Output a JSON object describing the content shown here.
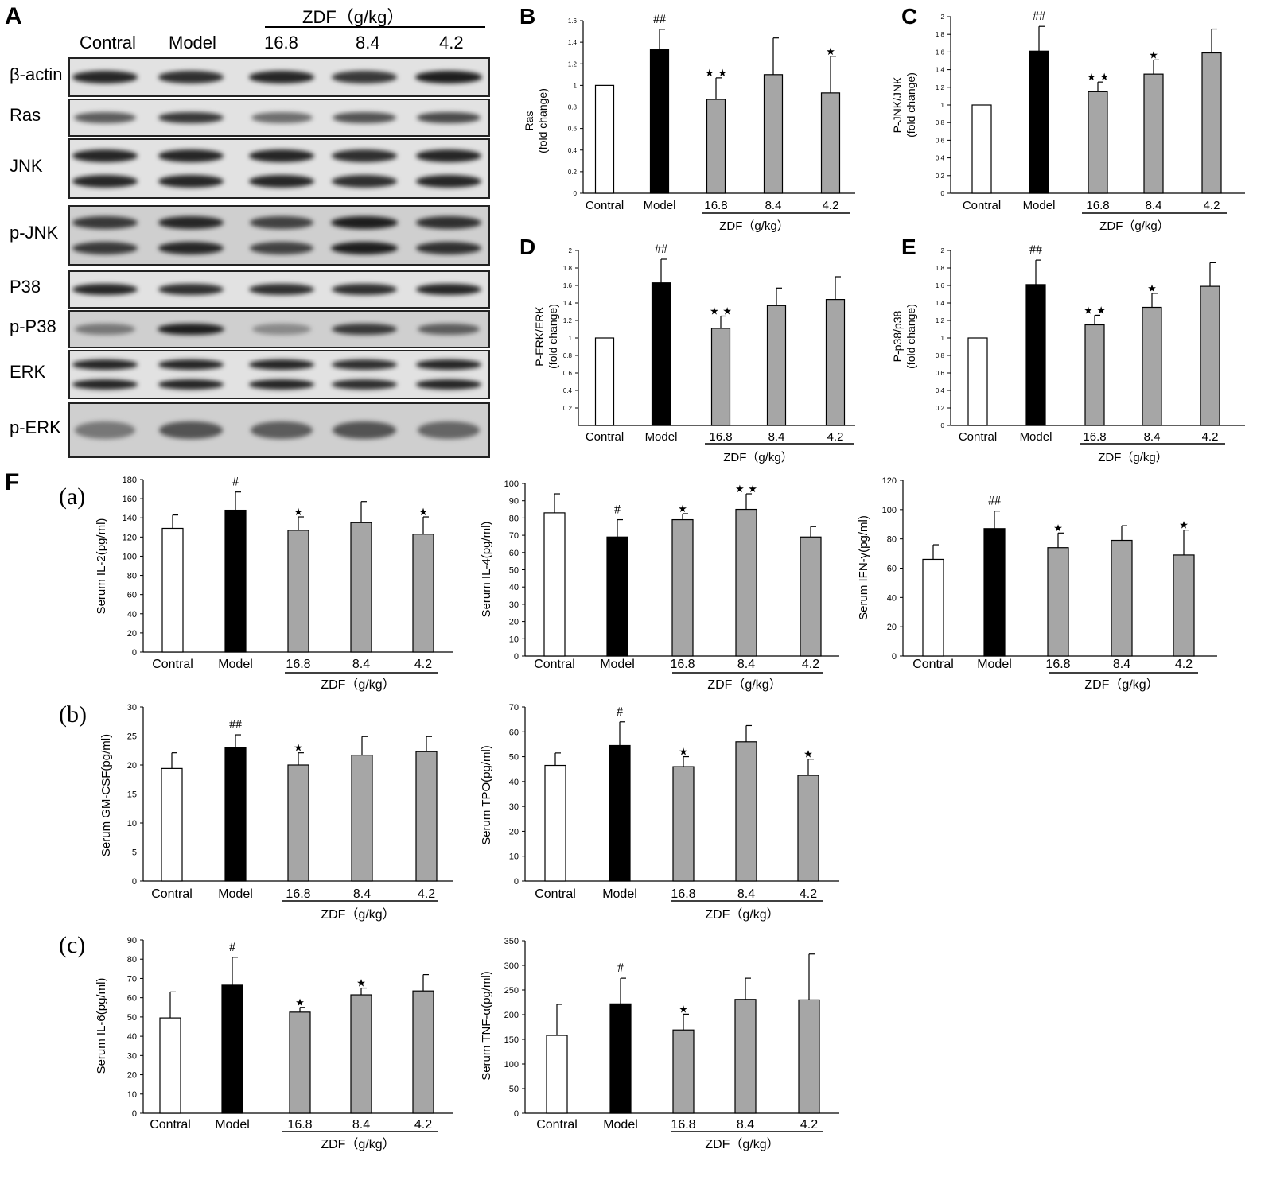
{
  "groups": [
    "Contral",
    "Model",
    "16.8",
    "8.4",
    "4.2"
  ],
  "zdf_label": "ZDF（g/kg）",
  "blot": {
    "letter": "A",
    "header": [
      "Contral",
      "Model",
      "16.8",
      "8.4",
      "4.2"
    ],
    "zdf_label": "ZDF（g/kg）",
    "rows": [
      {
        "label": "β-actin",
        "bands": [
          0.9,
          0.85,
          0.9,
          0.8,
          0.95
        ],
        "nbands": 1
      },
      {
        "label": "Ras",
        "bands": [
          0.6,
          0.8,
          0.5,
          0.65,
          0.7
        ],
        "nbands": 1
      },
      {
        "label": "JNK",
        "bands": [
          0.9,
          0.9,
          0.9,
          0.85,
          0.9
        ],
        "nbands": 2
      },
      {
        "label": "p-JNK",
        "bands": [
          0.8,
          0.9,
          0.75,
          0.95,
          0.85
        ],
        "nbands": 2
      },
      {
        "label": "P38",
        "bands": [
          0.9,
          0.85,
          0.85,
          0.85,
          0.9
        ],
        "nbands": 1
      },
      {
        "label": "p-P38",
        "bands": [
          0.45,
          0.95,
          0.35,
          0.8,
          0.6
        ],
        "nbands": 1
      },
      {
        "label": "ERK",
        "bands": [
          0.9,
          0.9,
          0.9,
          0.85,
          0.9
        ],
        "nbands": 2
      },
      {
        "label": "p-ERK",
        "bands": [
          0.45,
          0.65,
          0.6,
          0.65,
          0.55
        ],
        "nbands": 1
      }
    ]
  },
  "panel_F_letter": "F",
  "sub_labels": [
    "(a)",
    "(b)",
    "(c)"
  ],
  "chart_data": [
    {
      "id": "B",
      "type": "bar",
      "title": "",
      "letter": "B",
      "xlabel": "",
      "ylabel": [
        "Ras",
        "(fold change)"
      ],
      "ylim": [
        0,
        1.6
      ],
      "yticks": [
        0,
        0.2,
        0.4,
        0.6,
        0.8,
        1,
        1.2,
        1.4,
        1.6
      ],
      "categories": [
        "Contral",
        "Model",
        "16.8",
        "8.4",
        "4.2"
      ],
      "values": [
        1.0,
        1.33,
        0.87,
        1.1,
        0.93
      ],
      "errors": [
        0,
        0.19,
        0.2,
        0.34,
        0.34
      ],
      "annotations": [
        "",
        "##",
        "**",
        "",
        "*"
      ],
      "zdf_label": "ZDF（g/kg）"
    },
    {
      "id": "C",
      "type": "bar",
      "title": "",
      "letter": "C",
      "xlabel": "",
      "ylabel": [
        "P-JNK/JNK",
        "(fold change)"
      ],
      "ylim": [
        0,
        2
      ],
      "yticks": [
        0,
        0.2,
        0.4,
        0.6,
        0.8,
        1,
        1.2,
        1.4,
        1.6,
        1.8,
        2
      ],
      "categories": [
        "Contral",
        "Model",
        "16.8",
        "8.4",
        "4.2"
      ],
      "values": [
        1.0,
        1.61,
        1.15,
        1.35,
        1.59
      ],
      "errors": [
        0,
        0.28,
        0.11,
        0.16,
        0.27
      ],
      "annotations": [
        "",
        "##",
        "**",
        "*",
        ""
      ],
      "zdf_label": "ZDF（g/kg）"
    },
    {
      "id": "D",
      "type": "bar",
      "title": "",
      "letter": "D",
      "xlabel": "",
      "ylabel": [
        "P-ERK/ERK",
        "(fold change)"
      ],
      "ylim": [
        0,
        2
      ],
      "yticks": [
        0.2,
        0.4,
        0.6,
        0.8,
        1,
        1.2,
        1.4,
        1.6,
        1.8,
        2
      ],
      "categories": [
        "Contral",
        "Model",
        "16.8",
        "8.4",
        "4.2"
      ],
      "values": [
        1.0,
        1.63,
        1.11,
        1.37,
        1.44
      ],
      "errors": [
        0,
        0.27,
        0.14,
        0.2,
        0.26
      ],
      "annotations": [
        "",
        "##",
        "**",
        "",
        ""
      ],
      "zdf_label": "ZDF（g/kg）"
    },
    {
      "id": "E",
      "type": "bar",
      "title": "",
      "letter": "E",
      "xlabel": "",
      "ylabel": [
        "P-p38/p38",
        "(fold change)"
      ],
      "ylim": [
        0,
        2
      ],
      "yticks": [
        0,
        0.2,
        0.4,
        0.6,
        0.8,
        1,
        1.2,
        1.4,
        1.6,
        1.8,
        2
      ],
      "categories": [
        "Contral",
        "Model",
        "16.8",
        "8.4",
        "4.2"
      ],
      "values": [
        1.0,
        1.61,
        1.15,
        1.35,
        1.59
      ],
      "errors": [
        0,
        0.28,
        0.11,
        0.16,
        0.27
      ],
      "annotations": [
        "",
        "##",
        "**",
        "*",
        ""
      ],
      "zdf_label": "ZDF（g/kg）"
    },
    {
      "id": "IL2",
      "type": "bar",
      "title": "",
      "xlabel": "",
      "ylabel": [
        "Serum IL-2(pg/ml)"
      ],
      "ylim": [
        0,
        180
      ],
      "yticks": [
        0,
        20,
        40,
        60,
        80,
        100,
        120,
        140,
        160,
        180
      ],
      "categories": [
        "Contral",
        "Model",
        "16.8",
        "8.4",
        "4.2"
      ],
      "values": [
        129,
        148,
        127,
        135,
        123
      ],
      "errors": [
        14,
        19,
        14,
        22,
        18
      ],
      "annotations": [
        "",
        "#",
        "*",
        "",
        "*"
      ],
      "zdf_label": "ZDF（g/kg）"
    },
    {
      "id": "IL4",
      "type": "bar",
      "title": "",
      "xlabel": "",
      "ylabel": [
        "Serum IL-4(pg/ml)"
      ],
      "ylim": [
        0,
        100
      ],
      "yticks": [
        0,
        10,
        20,
        30,
        40,
        50,
        60,
        70,
        80,
        90,
        100
      ],
      "categories": [
        "Contral",
        "Model",
        "16.8",
        "8.4",
        "4.2"
      ],
      "values": [
        83,
        69,
        79,
        85,
        69
      ],
      "errors": [
        11,
        10,
        3.5,
        9,
        6
      ],
      "annotations": [
        "",
        "#",
        "*",
        "**",
        ""
      ],
      "zdf_label": "ZDF（g/kg）"
    },
    {
      "id": "IFN",
      "type": "bar",
      "title": "",
      "xlabel": "",
      "ylabel": [
        "Serum IFN-γ(pg/ml)"
      ],
      "ylim": [
        0,
        120
      ],
      "yticks": [
        0,
        20,
        40,
        60,
        80,
        100,
        120
      ],
      "categories": [
        "Contral",
        "Model",
        "16.8",
        "8.4",
        "4.2"
      ],
      "values": [
        66,
        87,
        74,
        79,
        69
      ],
      "errors": [
        10,
        12,
        10,
        10,
        17
      ],
      "annotations": [
        "",
        "##",
        "*",
        "",
        "*"
      ],
      "zdf_label": "ZDF（g/kg）"
    },
    {
      "id": "GMCSF",
      "type": "bar",
      "title": "",
      "xlabel": "",
      "ylabel": [
        "Serum GM-CSF(pg/ml)"
      ],
      "ylim": [
        0,
        30
      ],
      "yticks": [
        0,
        5,
        10,
        15,
        20,
        25,
        30
      ],
      "categories": [
        "Contral",
        "Model",
        "16.8",
        "8.4",
        "4.2"
      ],
      "values": [
        19.4,
        23,
        20,
        21.7,
        22.3
      ],
      "errors": [
        2.7,
        2.2,
        2.1,
        3.2,
        2.6
      ],
      "annotations": [
        "",
        "##",
        "*",
        "",
        ""
      ],
      "zdf_label": "ZDF（g/kg）"
    },
    {
      "id": "TPO",
      "type": "bar",
      "title": "",
      "xlabel": "",
      "ylabel": [
        "Serum TPO(pg/ml)"
      ],
      "ylim": [
        0,
        70
      ],
      "yticks": [
        0,
        10,
        20,
        30,
        40,
        50,
        60,
        70
      ],
      "categories": [
        "Contral",
        "Model",
        "16.8",
        "8.4",
        "4.2"
      ],
      "values": [
        46.5,
        54.5,
        46,
        56,
        42.5
      ],
      "errors": [
        5,
        9.5,
        4,
        6.5,
        6.5
      ],
      "annotations": [
        "",
        "#",
        "*",
        "",
        "*"
      ],
      "zdf_label": "ZDF（g/kg）"
    },
    {
      "id": "IL6",
      "type": "bar",
      "title": "",
      "xlabel": "",
      "ylabel": [
        "Serum IL-6(pg/ml)"
      ],
      "ylim": [
        0,
        90
      ],
      "yticks": [
        0,
        10,
        20,
        30,
        40,
        50,
        60,
        70,
        80,
        90
      ],
      "categories": [
        "Contral",
        "Model",
        "16.8",
        "8.4",
        "4.2"
      ],
      "values": [
        49.5,
        66.5,
        52.5,
        61.5,
        63.5
      ],
      "errors": [
        13.5,
        14.5,
        2.5,
        3.5,
        8.5
      ],
      "annotations": [
        "",
        "#",
        "*",
        "*",
        ""
      ],
      "zdf_label": "ZDF（g/kg）"
    },
    {
      "id": "TNF",
      "type": "bar",
      "title": "",
      "xlabel": "",
      "ylabel": [
        "Serum TNF-α(pg/ml)"
      ],
      "ylim": [
        0,
        350
      ],
      "yticks": [
        0,
        50,
        100,
        150,
        200,
        250,
        300,
        350
      ],
      "categories": [
        "Contral",
        "Model",
        "16.8",
        "8.4",
        "4.2"
      ],
      "values": [
        158,
        222,
        169,
        231,
        230
      ],
      "errors": [
        63,
        52,
        32,
        43,
        93
      ],
      "annotations": [
        "",
        "#",
        "*",
        "",
        ""
      ],
      "zdf_label": "ZDF（g/kg）"
    }
  ]
}
